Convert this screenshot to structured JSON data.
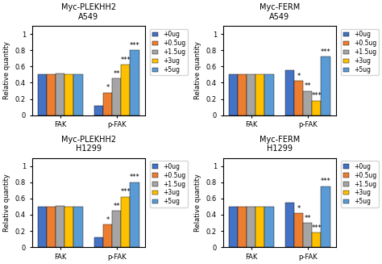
{
  "chart_data": [
    {
      "type": "bar",
      "title": "Myc-PLEKHH2",
      "subtitle": "A549",
      "categories": [
        "FAK",
        "p-FAK"
      ],
      "series": [
        {
          "name": "+0ug",
          "color": "#4472c4",
          "values": [
            0.5,
            0.12
          ]
        },
        {
          "name": "+0.5ug",
          "color": "#ed7d31",
          "values": [
            0.5,
            0.28
          ]
        },
        {
          "name": "+1.5ug",
          "color": "#a5a5a5",
          "values": [
            0.51,
            0.45
          ]
        },
        {
          "name": "+3ug",
          "color": "#ffc000",
          "values": [
            0.5,
            0.62
          ]
        },
        {
          "name": "+5ug",
          "color": "#5b9bd5",
          "values": [
            0.5,
            0.8
          ]
        }
      ],
      "y_label": "Relative quantity",
      "ylim": [
        0,
        1.1
      ],
      "yticks": [
        0,
        0.2,
        0.4,
        0.6,
        0.8,
        1
      ],
      "grid": false,
      "legend": "upper left",
      "annotations": [
        {
          "text": "*",
          "series": "+0.5ug",
          "category": "p-FAK"
        },
        {
          "text": "**",
          "series": "+1.5ug",
          "category": "p-FAK"
        },
        {
          "text": "***",
          "series": "+3ug",
          "category": "p-FAK"
        },
        {
          "text": "***",
          "series": "+5ug",
          "category": "p-FAK"
        }
      ]
    },
    {
      "type": "bar",
      "title": "Myc-FERM",
      "subtitle": "A549",
      "categories": [
        "FAK",
        "p-FAK"
      ],
      "series": [
        {
          "name": "+0ug",
          "color": "#4472c4",
          "values": [
            0.5,
            0.55
          ]
        },
        {
          "name": "+0.5ug",
          "color": "#ed7d31",
          "values": [
            0.5,
            0.42
          ]
        },
        {
          "name": "+1.5ug",
          "color": "#a5a5a5",
          "values": [
            0.5,
            0.3
          ]
        },
        {
          "name": "+3ug",
          "color": "#ffc000",
          "values": [
            0.5,
            0.18
          ]
        },
        {
          "name": "+5ug",
          "color": "#5b9bd5",
          "values": [
            0.5,
            0.72
          ]
        }
      ],
      "y_label": "Relative quantity",
      "ylim": [
        0,
        1.1
      ],
      "yticks": [
        0,
        0.2,
        0.4,
        0.6,
        0.8,
        1
      ],
      "grid": false,
      "legend": "upper left",
      "annotations": [
        {
          "text": "*",
          "series": "+0.5ug",
          "category": "p-FAK"
        },
        {
          "text": "**",
          "series": "+1.5ug",
          "category": "p-FAK"
        },
        {
          "text": "***",
          "series": "+3ug",
          "category": "p-FAK"
        },
        {
          "text": "***",
          "series": "+5ug",
          "category": "p-FAK"
        }
      ]
    },
    {
      "type": "bar",
      "title": "Myc-PLEKHH2",
      "subtitle": "H1299",
      "categories": [
        "FAK",
        "p-FAK"
      ],
      "series": [
        {
          "name": "+0ug",
          "color": "#4472c4",
          "values": [
            0.5,
            0.12
          ]
        },
        {
          "name": "+0.5ug",
          "color": "#ed7d31",
          "values": [
            0.5,
            0.28
          ]
        },
        {
          "name": "+1.5ug",
          "color": "#a5a5a5",
          "values": [
            0.51,
            0.45
          ]
        },
        {
          "name": "+3ug",
          "color": "#ffc000",
          "values": [
            0.5,
            0.62
          ]
        },
        {
          "name": "+5ug",
          "color": "#5b9bd5",
          "values": [
            0.5,
            0.8
          ]
        }
      ],
      "y_label": "Relative quantity",
      "ylim": [
        0,
        1.1
      ],
      "yticks": [
        0,
        0.2,
        0.4,
        0.6,
        0.8,
        1
      ],
      "grid": false,
      "legend": "upper left",
      "annotations": [
        {
          "text": "*",
          "series": "+0.5ug",
          "category": "p-FAK"
        },
        {
          "text": "**",
          "series": "+1.5ug",
          "category": "p-FAK"
        },
        {
          "text": "***",
          "series": "+3ug",
          "category": "p-FAK"
        },
        {
          "text": "***",
          "series": "+5ug",
          "category": "p-FAK"
        }
      ]
    },
    {
      "type": "bar",
      "title": "Myc-FERM",
      "subtitle": "H1299",
      "categories": [
        "FAK",
        "p-FAK"
      ],
      "series": [
        {
          "name": "+0ug",
          "color": "#4472c4",
          "values": [
            0.5,
            0.55
          ]
        },
        {
          "name": "+0.5ug",
          "color": "#ed7d31",
          "values": [
            0.5,
            0.42
          ]
        },
        {
          "name": "+1.5ug",
          "color": "#a5a5a5",
          "values": [
            0.5,
            0.3
          ]
        },
        {
          "name": "+3ug",
          "color": "#ffc000",
          "values": [
            0.5,
            0.18
          ]
        },
        {
          "name": "+5ug",
          "color": "#5b9bd5",
          "values": [
            0.5,
            0.75
          ]
        }
      ],
      "y_label": "Relative quantity",
      "ylim": [
        0,
        1.1
      ],
      "yticks": [
        0,
        0.2,
        0.4,
        0.6,
        0.8,
        1
      ],
      "grid": false,
      "legend": "upper left",
      "annotations": [
        {
          "text": "*",
          "series": "+0.5ug",
          "category": "p-FAK"
        },
        {
          "text": "**",
          "series": "+1.5ug",
          "category": "p-FAK"
        },
        {
          "text": "***",
          "series": "+3ug",
          "category": "p-FAK"
        },
        {
          "text": "***",
          "series": "+5ug",
          "category": "p-FAK"
        }
      ]
    }
  ]
}
